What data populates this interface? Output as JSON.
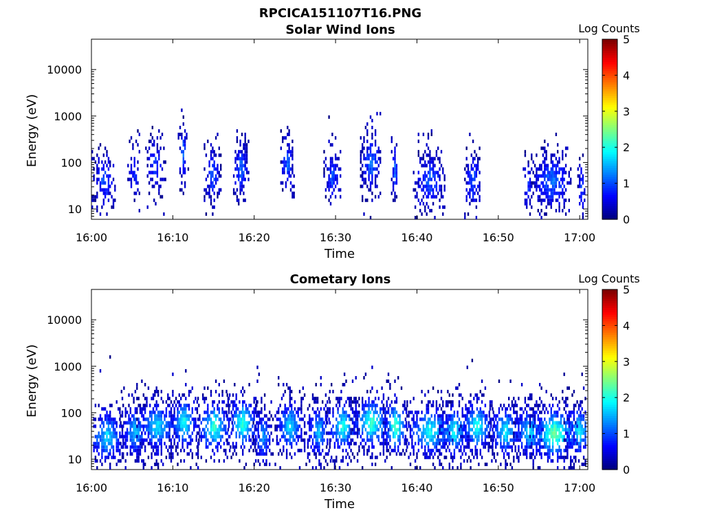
{
  "figure_title": "RPCICA151107T16.PNG",
  "chart_data": [
    {
      "type": "heatmap",
      "title": "Solar Wind Ions",
      "xlabel": "Time",
      "ylabel": "Energy (eV)",
      "x_ticks": [
        "16:00",
        "16:10",
        "16:20",
        "16:30",
        "16:40",
        "16:50",
        "17:00"
      ],
      "xlim": [
        "16:00",
        "17:01"
      ],
      "y_scale": "log",
      "y_ticks": [
        "10",
        "100",
        "1000",
        "10000"
      ],
      "ylim": [
        6,
        45000
      ],
      "colorbar": {
        "label": "Log Counts",
        "ticks": [
          "0",
          "1",
          "2",
          "3",
          "4",
          "5"
        ],
        "range": [
          0,
          5
        ],
        "colormap": "jet"
      },
      "seed": 11,
      "bursts": [
        {
          "t": 1.5,
          "center": 40,
          "dur": 1.5,
          "intensity": 0.8
        },
        {
          "t": 5.2,
          "center": 60,
          "dur": 0.8,
          "intensity": 0.6
        },
        {
          "t": 7.8,
          "center": 90,
          "dur": 1.2,
          "intensity": 0.7
        },
        {
          "t": 11.2,
          "center": 150,
          "dur": 0.6,
          "intensity": 0.9
        },
        {
          "t": 14.8,
          "center": 60,
          "dur": 1.0,
          "intensity": 0.9
        },
        {
          "t": 18.3,
          "center": 70,
          "dur": 0.9,
          "intensity": 1.0
        },
        {
          "t": 24.0,
          "center": 90,
          "dur": 0.8,
          "intensity": 0.9
        },
        {
          "t": 29.5,
          "center": 50,
          "dur": 1.0,
          "intensity": 0.8
        },
        {
          "t": 34.3,
          "center": 100,
          "dur": 1.3,
          "intensity": 1.0
        },
        {
          "t": 37.2,
          "center": 60,
          "dur": 0.4,
          "intensity": 1.0
        },
        {
          "t": 41.5,
          "center": 40,
          "dur": 2.0,
          "intensity": 0.9
        },
        {
          "t": 46.8,
          "center": 40,
          "dur": 1.0,
          "intensity": 0.9
        },
        {
          "t": 53.5,
          "center": 30,
          "dur": 0.5,
          "intensity": 0.7
        },
        {
          "t": 56.5,
          "center": 40,
          "dur": 2.5,
          "intensity": 1.0
        },
        {
          "t": 60.2,
          "center": 30,
          "dur": 0.5,
          "intensity": 0.8
        }
      ]
    },
    {
      "type": "heatmap",
      "title": "Cometary Ions",
      "xlabel": "Time",
      "ylabel": "Energy (eV)",
      "x_ticks": [
        "16:00",
        "16:10",
        "16:20",
        "16:30",
        "16:40",
        "16:50",
        "17:00"
      ],
      "xlim": [
        "16:00",
        "17:01"
      ],
      "y_scale": "log",
      "y_ticks": [
        "10",
        "100",
        "1000",
        "10000"
      ],
      "ylim": [
        6,
        45000
      ],
      "colorbar": {
        "label": "Log Counts",
        "ticks": [
          "0",
          "1",
          "2",
          "3",
          "4",
          "5"
        ],
        "range": [
          0,
          5
        ],
        "colormap": "jet"
      },
      "seed": 29,
      "bursts": [
        {
          "t": 1.8,
          "center": 30,
          "dur": 2.2,
          "intensity": 1.6
        },
        {
          "t": 5.3,
          "center": 40,
          "dur": 1.8,
          "intensity": 1.4
        },
        {
          "t": 8.0,
          "center": 50,
          "dur": 2.5,
          "intensity": 1.6
        },
        {
          "t": 11.3,
          "center": 60,
          "dur": 1.8,
          "intensity": 1.8
        },
        {
          "t": 15.0,
          "center": 50,
          "dur": 2.2,
          "intensity": 2.0
        },
        {
          "t": 18.5,
          "center": 60,
          "dur": 2.0,
          "intensity": 2.0
        },
        {
          "t": 21.0,
          "center": 30,
          "dur": 1.2,
          "intensity": 1.2
        },
        {
          "t": 24.3,
          "center": 50,
          "dur": 1.8,
          "intensity": 1.6
        },
        {
          "t": 27.8,
          "center": 40,
          "dur": 1.5,
          "intensity": 1.4
        },
        {
          "t": 30.8,
          "center": 50,
          "dur": 2.0,
          "intensity": 1.8
        },
        {
          "t": 34.3,
          "center": 60,
          "dur": 2.5,
          "intensity": 2.0
        },
        {
          "t": 37.3,
          "center": 50,
          "dur": 1.5,
          "intensity": 2.2
        },
        {
          "t": 41.5,
          "center": 40,
          "dur": 3.0,
          "intensity": 1.8
        },
        {
          "t": 44.5,
          "center": 40,
          "dur": 2.0,
          "intensity": 1.7
        },
        {
          "t": 47.3,
          "center": 50,
          "dur": 2.2,
          "intensity": 1.8
        },
        {
          "t": 50.8,
          "center": 40,
          "dur": 2.0,
          "intensity": 1.6
        },
        {
          "t": 53.8,
          "center": 40,
          "dur": 2.0,
          "intensity": 1.6
        },
        {
          "t": 56.8,
          "center": 35,
          "dur": 3.0,
          "intensity": 2.3
        },
        {
          "t": 59.8,
          "center": 40,
          "dur": 1.8,
          "intensity": 1.7
        }
      ]
    }
  ]
}
